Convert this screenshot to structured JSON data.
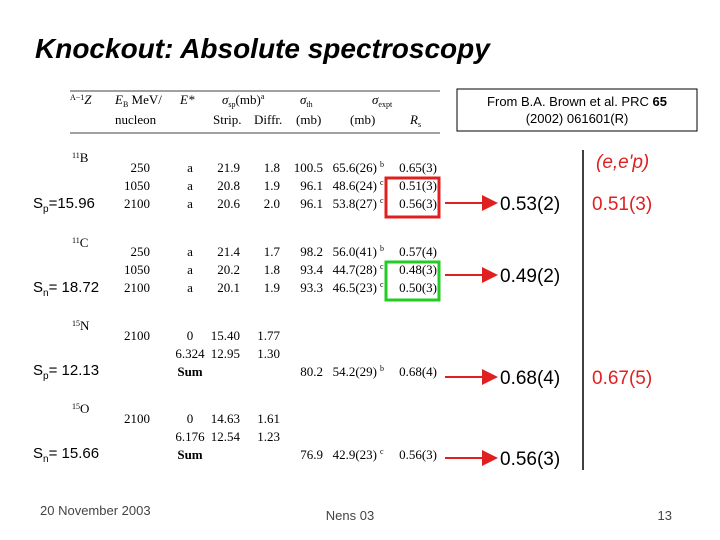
{
  "header": {
    "title": "Knockout: Absolute spectroscopy"
  },
  "citation": {
    "before": "From B.A. Brown et al. PRC ",
    "bold": "65",
    "line2": "(2002) 061601(R)"
  },
  "table": {
    "columns": {
      "z_mass": "A−1",
      "z_symbol": "Z",
      "eb": "E",
      "eb_sub": "B",
      "eb_unit": " MeV/",
      "eb_unit2": "nucleon",
      "estar": "E*",
      "sp": "σ",
      "sp_sub": "sp",
      "sp_unit": "(mb)",
      "sp_note": "a",
      "strip": "Strip.",
      "diffr": "Diffr.",
      "th": "σ",
      "th_sub": "th",
      "th_unit": "(mb)",
      "expt": "σ",
      "expt_sub": "expt",
      "expt_unit": "(mb)",
      "rs": "R",
      "rs_sub": "s"
    },
    "groups": [
      {
        "mass": "11",
        "symbol": "B",
        "rows": [
          {
            "eb": "250",
            "estar": "a",
            "strip": "21.9",
            "diffr": "1.8",
            "th": "100.5",
            "expt": "65.6(26)",
            "note": "b",
            "rs": "0.65(3)"
          },
          {
            "eb": "1050",
            "estar": "a",
            "strip": "20.8",
            "diffr": "1.9",
            "th": "96.1",
            "expt": "48.6(24)",
            "note": "c",
            "rs": "0.51(3)"
          },
          {
            "eb": "2100",
            "estar": "a",
            "strip": "20.6",
            "diffr": "2.0",
            "th": "96.1",
            "expt": "53.8(27)",
            "note": "c",
            "rs": "0.56(3)"
          }
        ]
      },
      {
        "mass": "11",
        "symbol": "C",
        "rows": [
          {
            "eb": "250",
            "estar": "a",
            "strip": "21.4",
            "diffr": "1.7",
            "th": "98.2",
            "expt": "56.0(41)",
            "note": "b",
            "rs": "0.57(4)"
          },
          {
            "eb": "1050",
            "estar": "a",
            "strip": "20.2",
            "diffr": "1.8",
            "th": "93.4",
            "expt": "44.7(28)",
            "note": "c",
            "rs": "0.48(3)"
          },
          {
            "eb": "2100",
            "estar": "a",
            "strip": "20.1",
            "diffr": "1.9",
            "th": "93.3",
            "expt": "46.5(23)",
            "note": "c",
            "rs": "0.50(3)"
          }
        ]
      },
      {
        "mass": "15",
        "symbol": "N",
        "rows": [
          {
            "eb": "2100",
            "estar": "0",
            "strip": "15.40",
            "diffr": "1.77"
          },
          {
            "estar": "6.324",
            "strip": "12.95",
            "diffr": "1.30"
          },
          {
            "estar": "Sum",
            "th": "80.2",
            "expt": "54.2(29)",
            "note": "b",
            "rs": "0.68(4)"
          }
        ]
      },
      {
        "mass": "15",
        "symbol": "O",
        "rows": [
          {
            "eb": "2100",
            "estar": "0",
            "strip": "14.63",
            "diffr": "1.61"
          },
          {
            "estar": "6.176",
            "strip": "12.54",
            "diffr": "1.23"
          },
          {
            "estar": "Sum",
            "th": "76.9",
            "expt": "42.9(23)",
            "note": "c",
            "rs": "0.56(3)"
          }
        ]
      }
    ]
  },
  "separations": [
    {
      "main": "S",
      "sub": "p",
      "rest": "=15.96"
    },
    {
      "main": "S",
      "sub": "n",
      "rest": "= 18.72"
    },
    {
      "main": "S",
      "sub": "p",
      "rest": "= 12.13"
    },
    {
      "main": "S",
      "sub": "n",
      "rest": "= 15.66"
    }
  ],
  "results": {
    "eep_label": "(e,e'p)",
    "knockout": [
      "0.53(2)",
      "0.49(2)",
      "0.68(4)",
      "0.56(3)"
    ],
    "eep": [
      "0.51(3)",
      "0.67(5)"
    ]
  },
  "footer": {
    "date": "20 November 2003",
    "event": "Nens 03",
    "page": "13"
  }
}
